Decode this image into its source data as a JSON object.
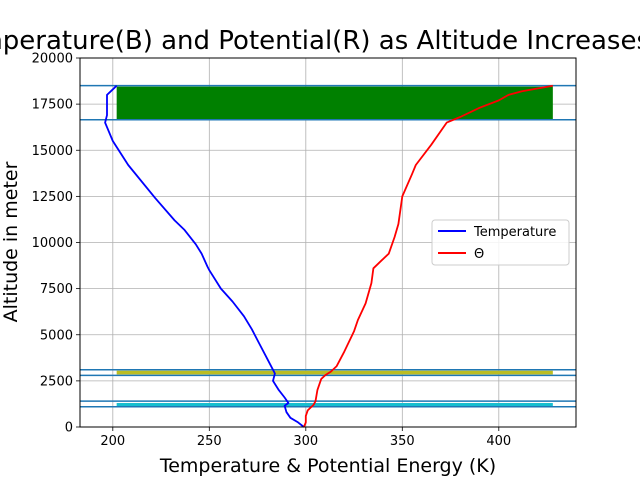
{
  "chart_data": {
    "type": "line",
    "title": "Temperature(B) and Potential(R) as Altitude Increases",
    "xlabel": "Temperature & Potential Energy (K)",
    "ylabel": "Altitude in meter",
    "xlim": [
      183,
      440
    ],
    "ylim": [
      0,
      20000
    ],
    "x_ticks": [
      200,
      250,
      300,
      350,
      400
    ],
    "y_ticks": [
      0,
      2500,
      5000,
      7500,
      10000,
      12500,
      15000,
      17500,
      20000
    ],
    "grid": true,
    "legend_position": "center-right",
    "series": [
      {
        "name": "Temperature",
        "color": "#0000ff",
        "points": [
          [
            299,
            0
          ],
          [
            296,
            250
          ],
          [
            292,
            500
          ],
          [
            290,
            800
          ],
          [
            289,
            1150
          ],
          [
            291,
            1300
          ],
          [
            289,
            1600
          ],
          [
            286,
            2000
          ],
          [
            283,
            2500
          ],
          [
            284,
            2900
          ],
          [
            283,
            3100
          ],
          [
            280,
            3700
          ],
          [
            276,
            4500
          ],
          [
            272,
            5300
          ],
          [
            268,
            6000
          ],
          [
            262,
            6800
          ],
          [
            256,
            7500
          ],
          [
            250,
            8500
          ],
          [
            249,
            8700
          ],
          [
            246,
            9400
          ],
          [
            243,
            9900
          ],
          [
            237,
            10700
          ],
          [
            232,
            11200
          ],
          [
            222,
            12400
          ],
          [
            208,
            14200
          ],
          [
            200,
            15500
          ],
          [
            196,
            16500
          ],
          [
            197,
            16900
          ],
          [
            197,
            18000
          ],
          [
            199,
            18200
          ],
          [
            202,
            18500
          ]
        ]
      },
      {
        "name": "Θ",
        "color": "#ff0000",
        "points": [
          [
            299,
            0
          ],
          [
            300,
            250
          ],
          [
            300,
            600
          ],
          [
            301,
            900
          ],
          [
            304,
            1200
          ],
          [
            305,
            1400
          ],
          [
            306,
            2000
          ],
          [
            308,
            2600
          ],
          [
            310,
            2800
          ],
          [
            313,
            3000
          ],
          [
            316,
            3300
          ],
          [
            320,
            4100
          ],
          [
            325,
            5200
          ],
          [
            327,
            5800
          ],
          [
            331,
            6700
          ],
          [
            334,
            7800
          ],
          [
            335,
            8600
          ],
          [
            338,
            8900
          ],
          [
            343,
            9400
          ],
          [
            346,
            10300
          ],
          [
            348,
            11000
          ],
          [
            350,
            12500
          ],
          [
            355,
            13700
          ],
          [
            357,
            14200
          ],
          [
            365,
            15300
          ],
          [
            373,
            16500
          ],
          [
            380,
            16800
          ],
          [
            390,
            17300
          ],
          [
            400,
            17700
          ],
          [
            405,
            18000
          ],
          [
            412,
            18200
          ],
          [
            428,
            18500
          ]
        ]
      }
    ],
    "bands": [
      {
        "color": "#008000",
        "x_range": [
          202,
          428
        ],
        "y_range": [
          16650,
          18450
        ],
        "edge_lines": [
          16650,
          18500
        ]
      },
      {
        "color": "#bcbd22",
        "x_range": [
          202,
          428
        ],
        "y_range": [
          2850,
          3050
        ],
        "edge_lines": [
          2800,
          3100
        ]
      },
      {
        "color": "#17becf",
        "x_range": [
          202,
          428
        ],
        "y_range": [
          1100,
          1300
        ],
        "edge_lines": [
          1100,
          1400
        ]
      }
    ],
    "band_edge_color": "#1f77b4"
  }
}
